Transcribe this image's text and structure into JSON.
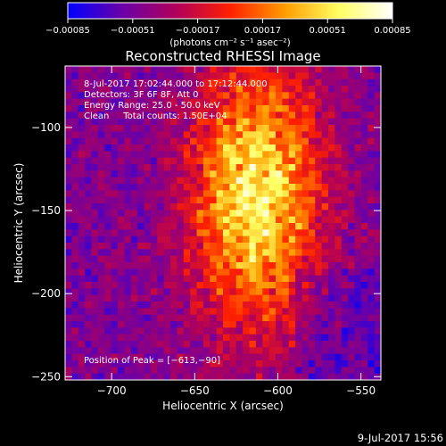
{
  "chart_data": {
    "type": "heatmap",
    "title": "Reconstructed RHESSI Image",
    "xlabel": "Heliocentric X (arcsec)",
    "ylabel": "Heliocentric Y (arcsec)",
    "xlim": [
      -728,
      -538
    ],
    "ylim": [
      -252,
      -63
    ],
    "x_ticks": [
      -700,
      -650,
      -600,
      -550
    ],
    "x_tick_labels": [
      "−700",
      "−650",
      "−600",
      "−550"
    ],
    "y_ticks": [
      -100,
      -150,
      -200,
      -250
    ],
    "y_tick_labels": [
      "−100",
      "−150",
      "−200",
      "−250"
    ],
    "colorbar": {
      "min": -0.00085,
      "max": 0.00085,
      "tick_values": [
        -0.00085,
        -0.00051,
        -0.00017,
        0.00017,
        0.00051,
        0.00085
      ],
      "tick_labels": [
        "−0.00085",
        "−0.00051",
        "−0.00017",
        "0.00017",
        "0.00051",
        "0.00085"
      ],
      "unit_label": "(photons cm⁻² s⁻¹ asec⁻²)",
      "colors": [
        "#0000ff",
        "#6a00a8",
        "#b0005a",
        "#ff2000",
        "#ff9b00",
        "#ffff60",
        "#ffffff"
      ]
    },
    "peak": {
      "x": -613,
      "y": -90
    },
    "annotations": [
      "8-Jul-2017 17:02:44.000 to 17:12:44.000",
      "Detectors: 3F 6F 8F, Att 0",
      "Energy Range: 25.0 - 50.0 keV",
      "Clean     Total counts: 1.50E+04"
    ],
    "peak_label": "Position of Peak = [−613,−90]",
    "footer_timestamp": "9-Jul-2017 15:56"
  }
}
